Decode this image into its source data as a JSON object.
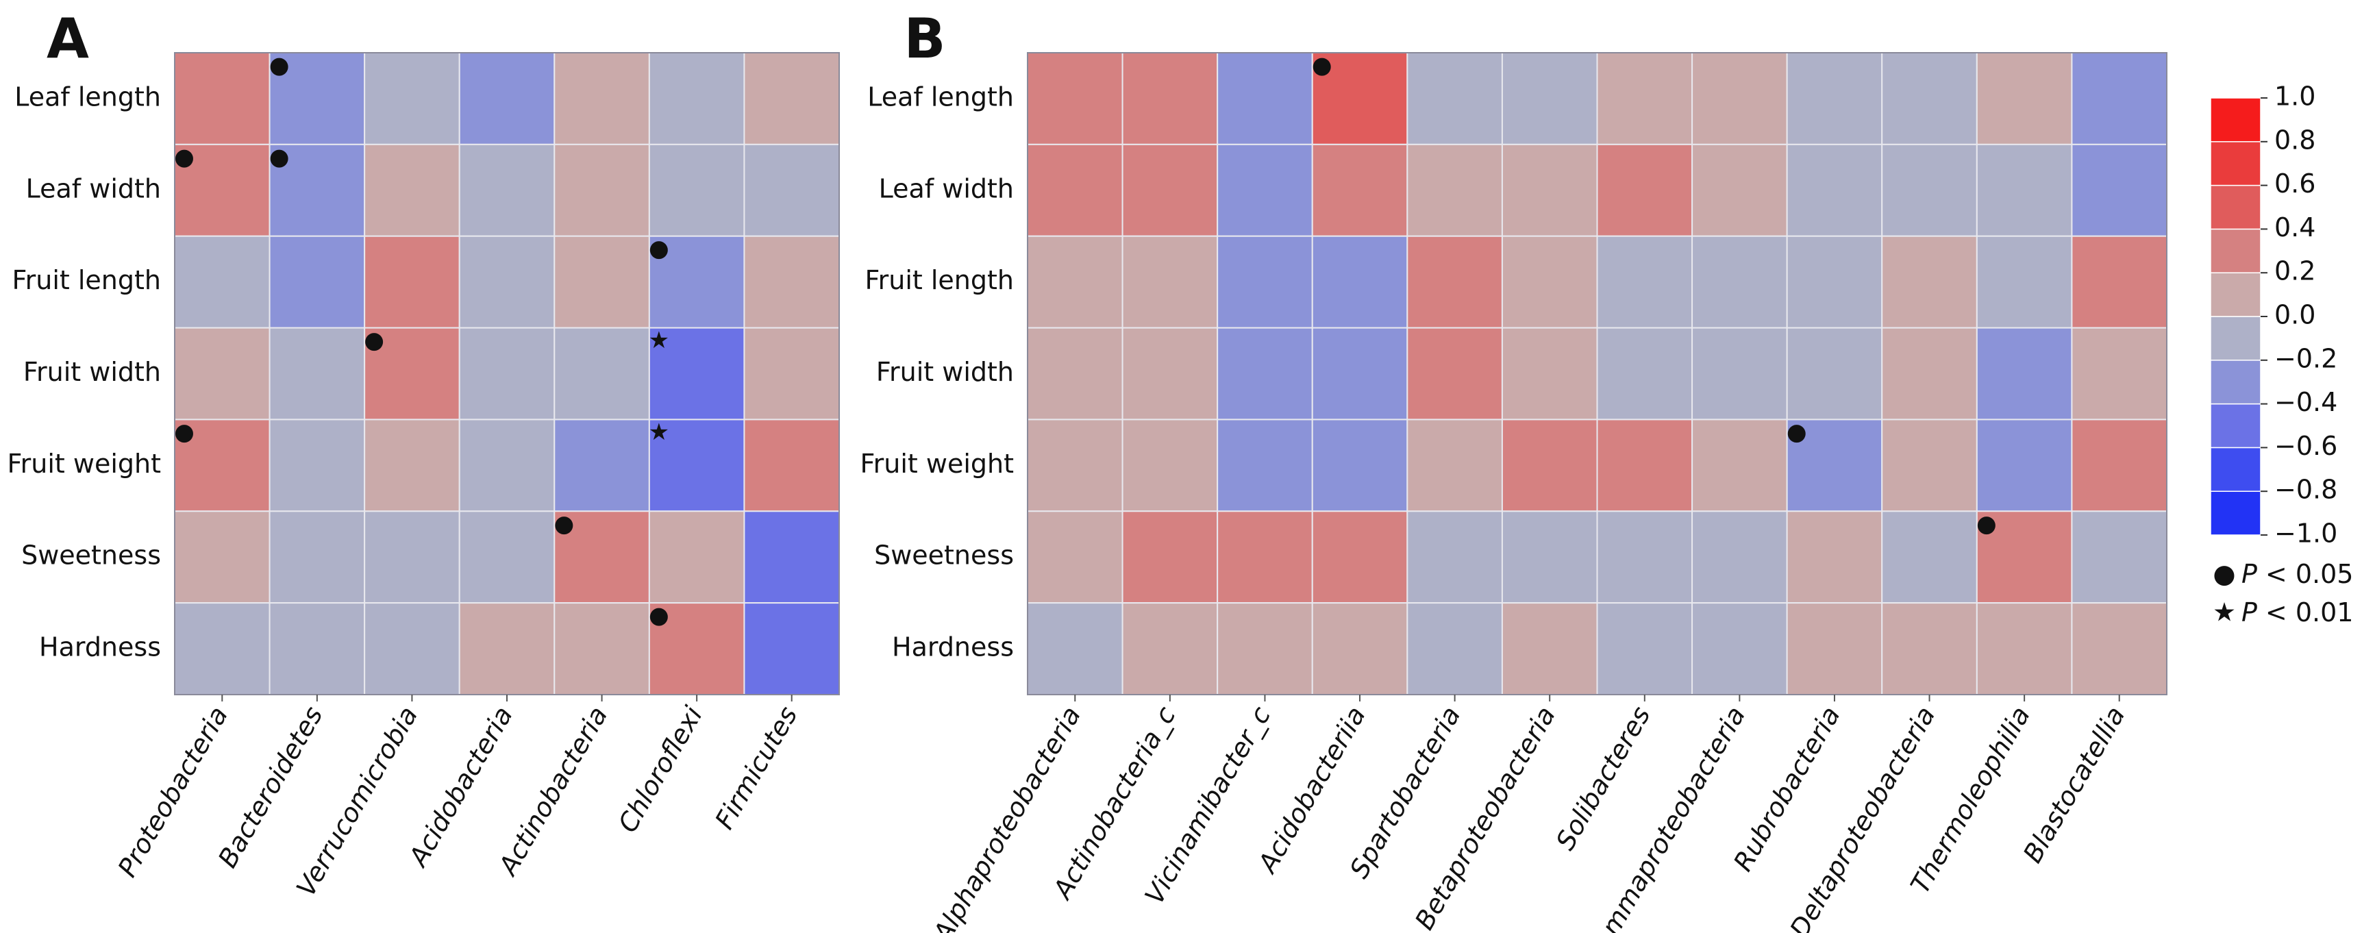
{
  "chart_data": [
    {
      "type": "heatmap",
      "panel_label": "A",
      "rows": [
        "Leaf length",
        "Leaf width",
        "Fruit length",
        "Fruit width",
        "Fruit weight",
        "Sweetness",
        "Hardness"
      ],
      "columns": [
        "Proteobacteria",
        "Bacteroidetes",
        "Verrucomicrobia",
        "Acidobacteria",
        "Actinobacteria",
        "Chloroflexi",
        "Firmicutes"
      ],
      "values": [
        [
          0.3,
          -0.3,
          -0.1,
          -0.3,
          0.1,
          -0.1,
          0.1
        ],
        [
          0.3,
          -0.3,
          0.1,
          -0.1,
          0.1,
          -0.1,
          -0.1
        ],
        [
          -0.1,
          -0.3,
          0.3,
          -0.1,
          0.1,
          -0.3,
          0.1
        ],
        [
          0.1,
          -0.1,
          0.3,
          -0.1,
          -0.1,
          -0.5,
          0.1
        ],
        [
          0.3,
          -0.1,
          0.1,
          -0.1,
          -0.3,
          -0.5,
          0.3
        ],
        [
          0.1,
          -0.1,
          -0.1,
          -0.1,
          0.3,
          0.1,
          -0.5
        ],
        [
          -0.1,
          -0.1,
          -0.1,
          0.1,
          0.1,
          0.3,
          -0.5
        ]
      ],
      "markers": [
        [
          null,
          "●",
          null,
          null,
          null,
          null,
          null
        ],
        [
          "●",
          "●",
          null,
          null,
          null,
          null,
          null
        ],
        [
          null,
          null,
          null,
          null,
          null,
          "●",
          null
        ],
        [
          null,
          null,
          "●",
          null,
          null,
          "★",
          null
        ],
        [
          "●",
          null,
          null,
          null,
          null,
          "★",
          null
        ],
        [
          null,
          null,
          null,
          null,
          "●",
          null,
          null
        ],
        [
          null,
          null,
          null,
          null,
          null,
          "●",
          null
        ]
      ]
    },
    {
      "type": "heatmap",
      "panel_label": "B",
      "rows": [
        "Leaf length",
        "Leaf width",
        "Fruit length",
        "Fruit width",
        "Fruit weight",
        "Sweetness",
        "Hardness"
      ],
      "columns": [
        "Alphaproteobacteria",
        "Actinobacteria_c",
        "Vicinamibacter_c",
        "Acidobacteriia",
        "Spartobacteria",
        "Betaproteobacteria",
        "Solibacteres",
        "Gammaproteobacteria",
        "Rubrobacteria",
        "Deltaproteobacteria",
        "Thermoleophilia",
        "Blastocatellia"
      ],
      "values": [
        [
          0.3,
          0.3,
          -0.3,
          0.5,
          -0.1,
          -0.1,
          0.1,
          0.1,
          -0.1,
          -0.1,
          0.1,
          -0.3
        ],
        [
          0.3,
          0.3,
          -0.3,
          0.3,
          0.1,
          0.1,
          0.3,
          0.1,
          -0.1,
          -0.1,
          -0.1,
          -0.3
        ],
        [
          0.1,
          0.1,
          -0.3,
          -0.3,
          0.3,
          0.1,
          -0.1,
          -0.1,
          -0.1,
          0.1,
          -0.1,
          0.3
        ],
        [
          0.1,
          0.1,
          -0.3,
          -0.3,
          0.3,
          0.1,
          -0.1,
          -0.1,
          -0.1,
          0.1,
          -0.3,
          0.1
        ],
        [
          0.1,
          0.1,
          -0.3,
          -0.3,
          0.1,
          0.3,
          0.3,
          0.1,
          -0.3,
          0.1,
          -0.3,
          0.3
        ],
        [
          0.1,
          0.3,
          0.3,
          0.3,
          -0.1,
          -0.1,
          -0.1,
          -0.1,
          0.1,
          -0.1,
          0.3,
          -0.1
        ],
        [
          -0.1,
          0.1,
          0.1,
          0.1,
          -0.1,
          0.1,
          -0.1,
          -0.1,
          0.1,
          0.1,
          0.1,
          0.1
        ]
      ],
      "markers": [
        [
          null,
          null,
          null,
          "●",
          null,
          null,
          null,
          null,
          null,
          null,
          null,
          null
        ],
        [
          null,
          null,
          null,
          null,
          null,
          null,
          null,
          null,
          null,
          null,
          null,
          null
        ],
        [
          null,
          null,
          null,
          null,
          null,
          null,
          null,
          null,
          null,
          null,
          null,
          null
        ],
        [
          null,
          null,
          null,
          null,
          null,
          null,
          null,
          null,
          null,
          null,
          null,
          null
        ],
        [
          null,
          null,
          null,
          null,
          null,
          null,
          null,
          null,
          "●",
          null,
          null,
          null
        ],
        [
          null,
          null,
          null,
          null,
          null,
          null,
          null,
          null,
          null,
          null,
          "●",
          null
        ],
        [
          null,
          null,
          null,
          null,
          null,
          null,
          null,
          null,
          null,
          null,
          null,
          null
        ]
      ]
    }
  ],
  "colorbar": {
    "lim": [
      -1,
      1
    ],
    "colors": [
      "#2233f5",
      "#3e4df0",
      "#6b72e6",
      "#8b93d8",
      "#aeb1c8",
      "#caaaaa",
      "#d58181",
      "#e05c5c",
      "#ea3c3c",
      "#f51c1c"
    ],
    "ticks": [
      {
        "value": 1,
        "label": "1.0"
      },
      0.8,
      0.6,
      0.4,
      0.2,
      {
        "value": 0,
        "label": "0.0"
      },
      {
        "value": -0.2,
        "label": "−0.2"
      },
      {
        "value": -0.4,
        "label": "−0.4"
      },
      {
        "value": -0.6,
        "label": "−0.6"
      },
      {
        "value": -0.8,
        "label": "−0.8"
      },
      {
        "value": -1,
        "label": "−1.0"
      }
    ]
  },
  "legend": [
    {
      "symbol": "●",
      "variable": "P",
      "text": "< 0.05"
    },
    {
      "symbol": "★",
      "variable": "P",
      "text": "< 0.01"
    }
  ]
}
